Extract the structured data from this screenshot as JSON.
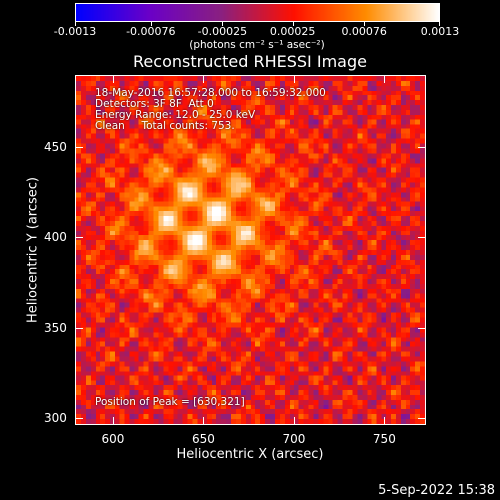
{
  "colorbar": {
    "ticks": [
      "-0.0013",
      "-0.00076",
      "-0.00025",
      "0.00025",
      "0.00076",
      "0.0013"
    ],
    "units": "(photons cm⁻² s⁻¹ asec⁻²)",
    "colors": [
      "#0000ff",
      "#6a00c8",
      "#8a2080",
      "#ff1000",
      "#ff8c00",
      "#ffffff"
    ]
  },
  "title": "Reconstructed RHESSI Image",
  "annotations": {
    "line1": "18-May-2016 16:57:28.000 to 16:59:32.000",
    "line2": "Detectors: 3F 8F  Att 0",
    "line3": "Energy Range: 12.0 - 25.0 keV",
    "line4": "Clean     Total counts: 753.",
    "peak": "Position of Peak = [630,321]"
  },
  "axes": {
    "xlabel": "Heliocentric X (arcsec)",
    "ylabel": "Heliocentric Y (arcsec)",
    "xticks": [
      "600",
      "650",
      "700",
      "750"
    ],
    "yticks": [
      "300",
      "350",
      "400",
      "450"
    ]
  },
  "timestamp": "5-Sep-2022 15:38",
  "chart_data": {
    "type": "heatmap",
    "title": "Reconstructed RHESSI Image",
    "xlabel": "Heliocentric X (arcsec)",
    "ylabel": "Heliocentric Y (arcsec)",
    "xlim": [
      579,
      773
    ],
    "ylim": [
      296,
      490
    ],
    "xticks": [
      600,
      650,
      700,
      750
    ],
    "yticks": [
      300,
      350,
      400,
      450
    ],
    "zlim": [
      -0.0013,
      0.0013
    ],
    "colorbar_ticks": [
      -0.0013,
      -0.00076,
      -0.00025,
      0.00025,
      0.00076,
      0.0013
    ],
    "peak_position": [
      630,
      321
    ],
    "source_center": [
      650,
      410
    ],
    "grid": false
  }
}
